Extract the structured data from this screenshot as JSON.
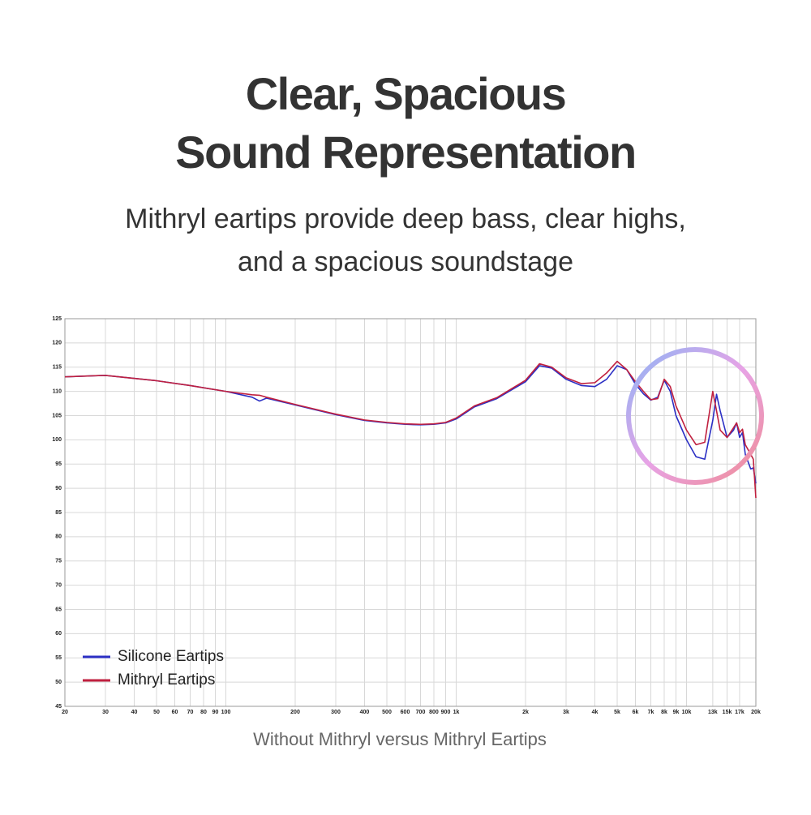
{
  "chart_data": {
    "type": "line",
    "title": [
      "Clear, Spacious",
      "Sound Representation"
    ],
    "subtitle": [
      "Mithryl eartips provide deep bass, clear highs,",
      "and a spacious soundstage"
    ],
    "caption": "Without Mithryl versus Mithryl Eartips",
    "x_scale": "log",
    "grid": true,
    "legend": "lower-left",
    "xlim": [
      20,
      20000
    ],
    "ylim": [
      45,
      125
    ],
    "xticks": [
      20,
      30,
      40,
      50,
      60,
      70,
      80,
      90,
      100,
      200,
      300,
      400,
      500,
      600,
      700,
      800,
      900,
      {
        "value": 1000,
        "label": "1k"
      },
      {
        "value": 2000,
        "label": "2k"
      },
      {
        "value": 3000,
        "label": "3k"
      },
      {
        "value": 4000,
        "label": "4k"
      },
      {
        "value": 5000,
        "label": "5k"
      },
      {
        "value": 6000,
        "label": "6k"
      },
      {
        "value": 7000,
        "label": "7k"
      },
      {
        "value": 8000,
        "label": "8k"
      },
      {
        "value": 9000,
        "label": "9k"
      },
      {
        "value": 10000,
        "label": "10k"
      },
      {
        "value": 13000,
        "label": "13k"
      },
      {
        "value": 15000,
        "label": "15k"
      },
      {
        "value": 17000,
        "label": "17k"
      },
      {
        "value": 20000,
        "label": "20k"
      }
    ],
    "yticks": [
      45,
      50,
      55,
      60,
      65,
      70,
      75,
      80,
      85,
      90,
      95,
      100,
      105,
      110,
      115,
      120,
      125
    ],
    "x": [
      20,
      30,
      50,
      70,
      100,
      130,
      140,
      150,
      200,
      300,
      400,
      500,
      600,
      700,
      800,
      900,
      1000,
      1200,
      1500,
      2000,
      2300,
      2600,
      3000,
      3500,
      4000,
      4500,
      5000,
      5500,
      6000,
      6500,
      7000,
      7500,
      8000,
      8500,
      9000,
      10000,
      11000,
      12000,
      13000,
      13500,
      14000,
      15000,
      16000,
      16500,
      17000,
      17500,
      18000,
      19000,
      19500,
      20000
    ],
    "series": [
      {
        "name": "Silicone Eartips",
        "color": "#2b2fc4",
        "values": [
          113,
          113.3,
          112.2,
          111.2,
          110,
          108.8,
          108,
          108.6,
          107.2,
          105.2,
          104,
          103.5,
          103.2,
          103.1,
          103.2,
          103.5,
          104.3,
          106.8,
          108.5,
          112,
          115.3,
          114.8,
          112.5,
          111.2,
          111,
          112.5,
          115.3,
          114.5,
          111.5,
          109.5,
          108.2,
          108.8,
          112.3,
          110,
          105,
          100,
          96.5,
          96,
          104,
          109.4,
          106,
          100.5,
          102,
          103.5,
          100.5,
          101.5,
          97,
          94,
          94.2,
          91
        ]
      },
      {
        "name": "Mithryl Eartips",
        "color": "#c0203f",
        "values": [
          113,
          113.3,
          112.2,
          111.2,
          110,
          109.3,
          109.2,
          108.8,
          107.3,
          105.3,
          104.1,
          103.6,
          103.3,
          103.2,
          103.3,
          103.6,
          104.5,
          107,
          108.7,
          112.3,
          115.7,
          115,
          112.8,
          111.6,
          111.8,
          113.8,
          116.2,
          114.5,
          112,
          110,
          108.3,
          108.5,
          112.5,
          111,
          107,
          102,
          99,
          99.5,
          110,
          106,
          102,
          100.5,
          102.5,
          103.5,
          101.5,
          102.2,
          99,
          97,
          96,
          88
        ]
      }
    ]
  }
}
